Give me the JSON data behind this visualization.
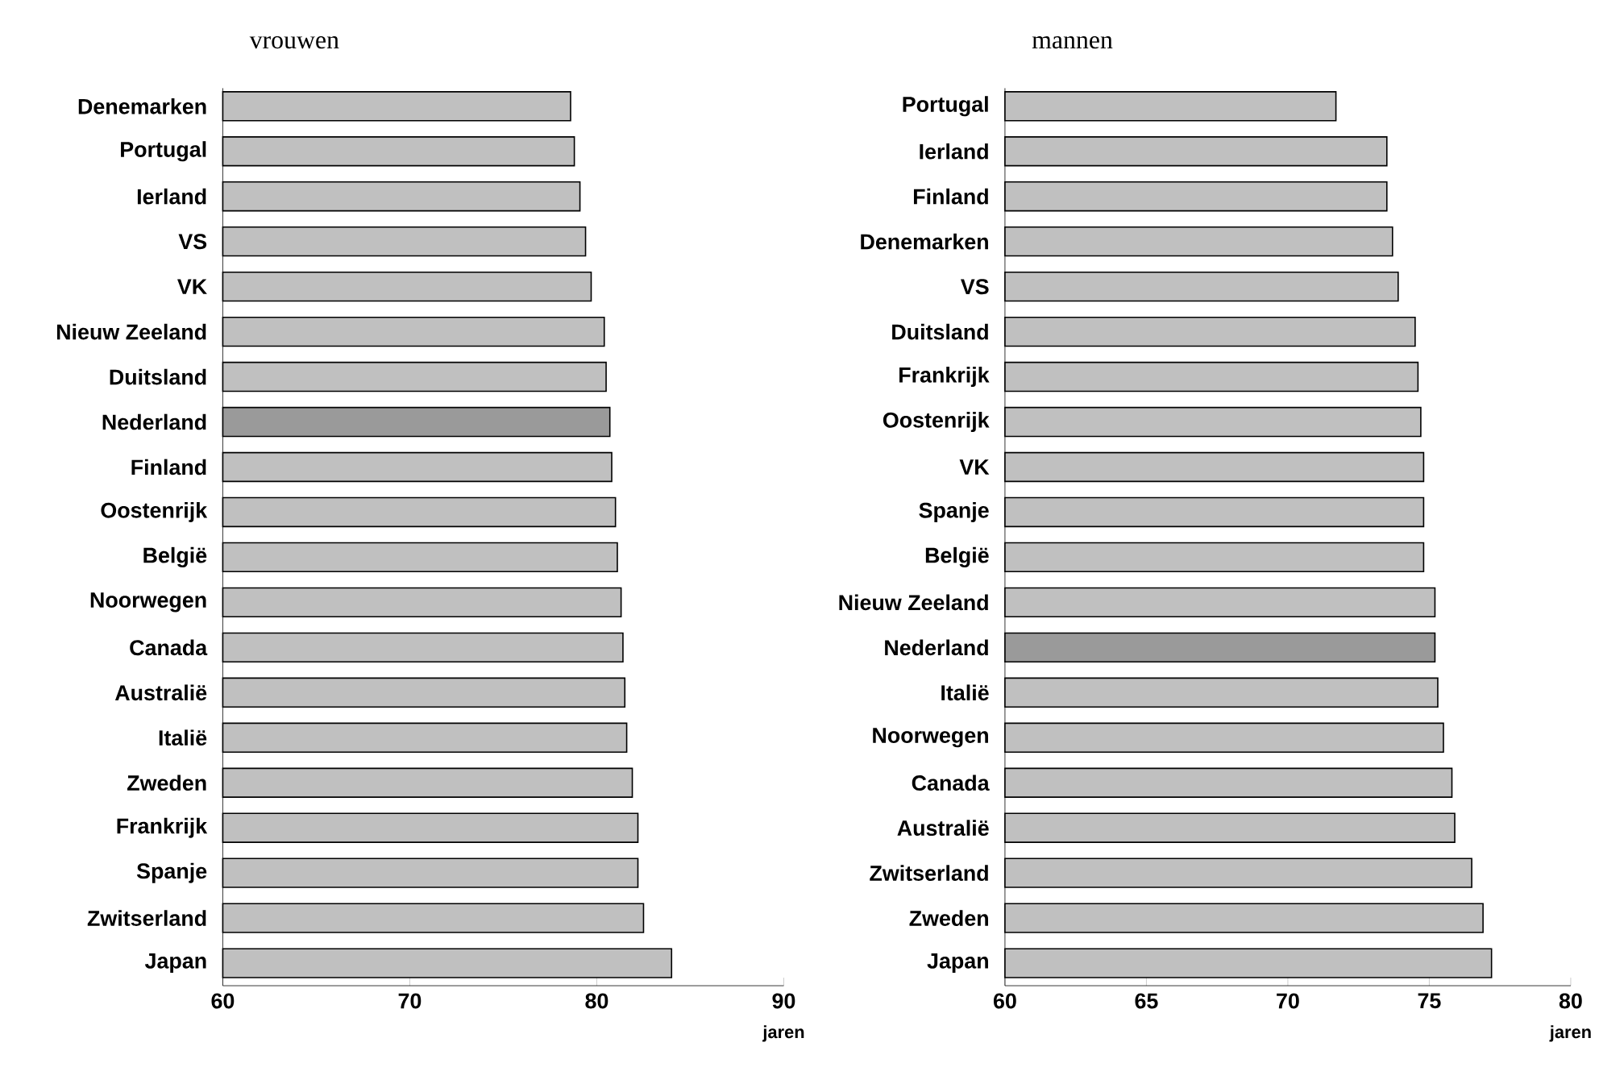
{
  "chart_data": [
    {
      "type": "bar",
      "orientation": "horizontal",
      "title": "vrouwen",
      "xlabel": "jaren",
      "categories": [
        "Denemarken",
        "Portugal",
        "Ierland",
        "VS",
        "VK",
        "Nieuw Zeeland",
        "Duitsland",
        "Nederland",
        "Finland",
        "Oostenrijk",
        "België",
        "Noorwegen",
        "Canada",
        "Australië",
        "Italië",
        "Zweden",
        "Frankrijk",
        "Spanje",
        "Zwitserland",
        "Japan"
      ],
      "values": [
        78.6,
        78.8,
        79.1,
        79.4,
        79.7,
        80.4,
        80.5,
        80.7,
        80.8,
        81.0,
        81.1,
        81.3,
        81.4,
        81.5,
        81.6,
        81.9,
        82.2,
        82.2,
        82.5,
        84.0
      ],
      "colors": [
        "#c0c0c0",
        "#c0c0c0",
        "#c0c0c0",
        "#c0c0c0",
        "#c0c0c0",
        "#c0c0c0",
        "#c0c0c0",
        "#9a9a9a",
        "#c0c0c0",
        "#c0c0c0",
        "#c0c0c0",
        "#c0c0c0",
        "#c0c0c0",
        "#c0c0c0",
        "#c0c0c0",
        "#c0c0c0",
        "#c0c0c0",
        "#c0c0c0",
        "#c0c0c0",
        "#c0c0c0"
      ],
      "xlim": [
        60,
        90
      ],
      "xticks": [
        60,
        70,
        80,
        90
      ]
    },
    {
      "type": "bar",
      "orientation": "horizontal",
      "title": "mannen",
      "xlabel": "jaren",
      "categories": [
        "Portugal",
        "Ierland",
        "Finland",
        "Denemarken",
        "VS",
        "Duitsland",
        "Frankrijk",
        "Oostenrijk",
        "VK",
        "Spanje",
        "België",
        "Nieuw Zeeland",
        "Nederland",
        "Italië",
        "Noorwegen",
        "Canada",
        "Australië",
        "Zwitserland",
        "Zweden",
        "Japan"
      ],
      "values": [
        71.7,
        73.5,
        73.5,
        73.7,
        73.9,
        74.5,
        74.6,
        74.7,
        74.8,
        74.8,
        74.8,
        75.2,
        75.2,
        75.3,
        75.5,
        75.8,
        75.9,
        76.5,
        76.9,
        77.2
      ],
      "colors": [
        "#c0c0c0",
        "#c0c0c0",
        "#c0c0c0",
        "#c0c0c0",
        "#c0c0c0",
        "#c0c0c0",
        "#c0c0c0",
        "#c0c0c0",
        "#c0c0c0",
        "#c0c0c0",
        "#c0c0c0",
        "#c0c0c0",
        "#9a9a9a",
        "#c0c0c0",
        "#c0c0c0",
        "#c0c0c0",
        "#c0c0c0",
        "#c0c0c0",
        "#c0c0c0",
        "#c0c0c0"
      ],
      "xlim": [
        60,
        80
      ],
      "xticks": [
        60,
        65,
        70,
        75,
        80
      ]
    }
  ]
}
